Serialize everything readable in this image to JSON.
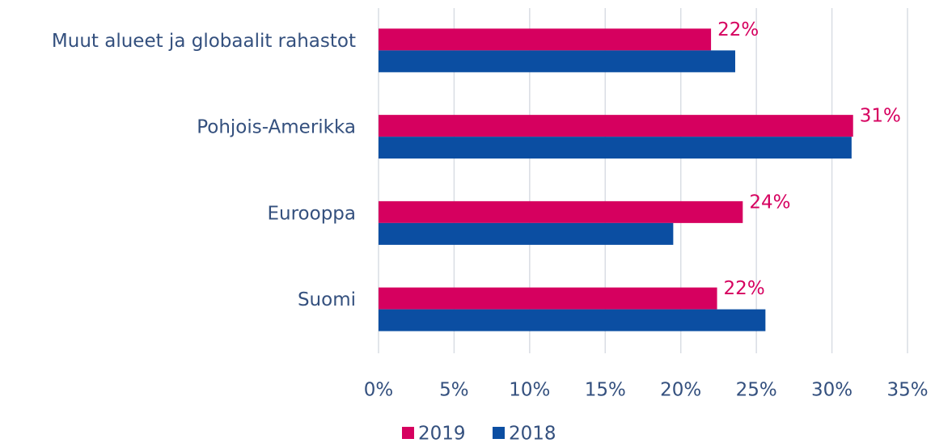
{
  "chart_data": {
    "type": "bar",
    "orientation": "horizontal",
    "categories": [
      "Muut alueet ja globaalit rahastot",
      "Pohjois-Amerikka",
      "Eurooppa",
      "Suomi"
    ],
    "series": [
      {
        "name": "2019",
        "color": "#d6005f",
        "values": [
          22.0,
          31.4,
          24.1,
          22.4
        ],
        "value_labels": [
          "22%",
          "31%",
          "24%",
          "22%"
        ]
      },
      {
        "name": "2018",
        "color": "#0b4ea2",
        "values": [
          23.6,
          31.3,
          19.5,
          25.6
        ]
      }
    ],
    "xlim": [
      0,
      35
    ],
    "xticks": [
      {
        "value": 0,
        "label": "0%"
      },
      {
        "value": 5,
        "label": "5%"
      },
      {
        "value": 10,
        "label": "10%"
      },
      {
        "value": 15,
        "label": "15%"
      },
      {
        "value": 20,
        "label": "20%"
      },
      {
        "value": 25,
        "label": "25%"
      },
      {
        "value": 30,
        "label": "30%"
      },
      {
        "value": 35,
        "label": "35%"
      }
    ],
    "grid": true,
    "legend": "bottom"
  }
}
